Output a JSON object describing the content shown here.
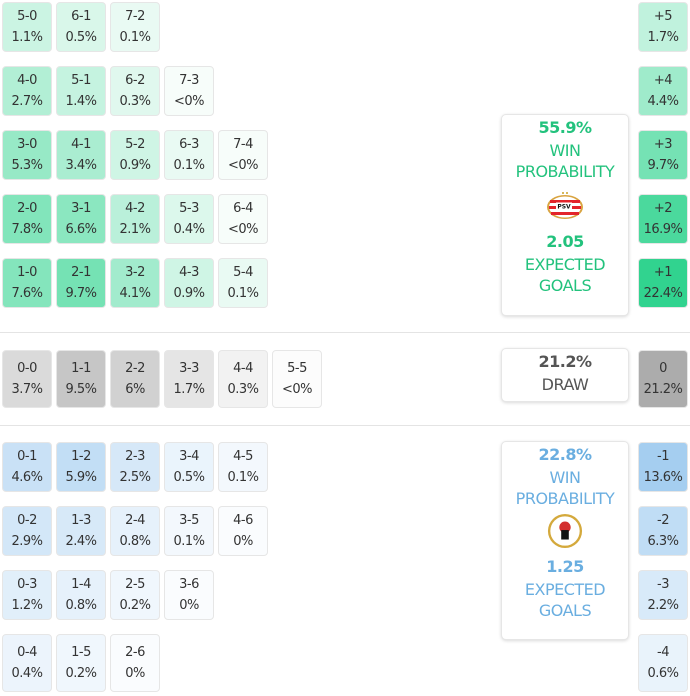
{
  "colors": {
    "home": "#2fd38e",
    "draw": "#a9a9a9",
    "away": "#8cc0ec",
    "home_text": "#23c27d",
    "away_text": "#6aaee0",
    "draw_text": "#555555"
  },
  "home_rows": [
    [
      {
        "s": "5-0",
        "p": "1.1%"
      },
      {
        "s": "6-1",
        "p": "0.5%"
      },
      {
        "s": "7-2",
        "p": "0.1%"
      }
    ],
    [
      {
        "s": "4-0",
        "p": "2.7%"
      },
      {
        "s": "5-1",
        "p": "1.4%"
      },
      {
        "s": "6-2",
        "p": "0.3%"
      },
      {
        "s": "7-3",
        "p": "<0%"
      }
    ],
    [
      {
        "s": "3-0",
        "p": "5.3%"
      },
      {
        "s": "4-1",
        "p": "3.4%"
      },
      {
        "s": "5-2",
        "p": "0.9%"
      },
      {
        "s": "6-3",
        "p": "0.1%"
      },
      {
        "s": "7-4",
        "p": "<0%"
      }
    ],
    [
      {
        "s": "2-0",
        "p": "7.8%"
      },
      {
        "s": "3-1",
        "p": "6.6%"
      },
      {
        "s": "4-2",
        "p": "2.1%"
      },
      {
        "s": "5-3",
        "p": "0.4%"
      },
      {
        "s": "6-4",
        "p": "<0%"
      }
    ],
    [
      {
        "s": "1-0",
        "p": "7.6%"
      },
      {
        "s": "2-1",
        "p": "9.7%"
      },
      {
        "s": "3-2",
        "p": "4.1%"
      },
      {
        "s": "4-3",
        "p": "0.9%"
      },
      {
        "s": "5-4",
        "p": "0.1%"
      }
    ]
  ],
  "draw_row": [
    {
      "s": "0-0",
      "p": "3.7%"
    },
    {
      "s": "1-1",
      "p": "9.5%"
    },
    {
      "s": "2-2",
      "p": "6%"
    },
    {
      "s": "3-3",
      "p": "1.7%"
    },
    {
      "s": "4-4",
      "p": "0.3%"
    },
    {
      "s": "5-5",
      "p": "<0%"
    }
  ],
  "away_rows": [
    [
      {
        "s": "0-1",
        "p": "4.6%"
      },
      {
        "s": "1-2",
        "p": "5.9%"
      },
      {
        "s": "2-3",
        "p": "2.5%"
      },
      {
        "s": "3-4",
        "p": "0.5%"
      },
      {
        "s": "4-5",
        "p": "0.1%"
      }
    ],
    [
      {
        "s": "0-2",
        "p": "2.9%"
      },
      {
        "s": "1-3",
        "p": "2.4%"
      },
      {
        "s": "2-4",
        "p": "0.8%"
      },
      {
        "s": "3-5",
        "p": "0.1%"
      },
      {
        "s": "4-6",
        "p": "0%"
      }
    ],
    [
      {
        "s": "0-3",
        "p": "1.2%"
      },
      {
        "s": "1-4",
        "p": "0.8%"
      },
      {
        "s": "2-5",
        "p": "0.2%"
      },
      {
        "s": "3-6",
        "p": "0%"
      }
    ],
    [
      {
        "s": "0-4",
        "p": "0.4%"
      },
      {
        "s": "1-5",
        "p": "0.2%"
      },
      {
        "s": "2-6",
        "p": "0%"
      }
    ]
  ],
  "home_margins": [
    {
      "s": "+5",
      "p": "1.7%"
    },
    {
      "s": "+4",
      "p": "4.4%"
    },
    {
      "s": "+3",
      "p": "9.7%"
    },
    {
      "s": "+2",
      "p": "16.9%"
    },
    {
      "s": "+1",
      "p": "22.4%"
    }
  ],
  "draw_margin": {
    "s": "0",
    "p": "21.2%"
  },
  "away_margins": [
    {
      "s": "-1",
      "p": "13.6%"
    },
    {
      "s": "-2",
      "p": "6.3%"
    },
    {
      "s": "-3",
      "p": "2.2%"
    },
    {
      "s": "-4",
      "p": "0.6%"
    }
  ],
  "home_card": {
    "win_pct": "55.9%",
    "win_label_1": "WIN",
    "win_label_2": "PROBABILITY",
    "logo_text": "PSV",
    "xg": "2.05",
    "xg_label_1": "EXPECTED",
    "xg_label_2": "GOALS"
  },
  "draw_card": {
    "pct": "21.2%",
    "label": "DRAW"
  },
  "away_card": {
    "win_pct": "22.8%",
    "win_label_1": "WIN",
    "win_label_2": "PROBABILITY",
    "logo_text": "SPARTA",
    "xg": "1.25",
    "xg_label_1": "EXPECTED",
    "xg_label_2": "GOALS"
  }
}
